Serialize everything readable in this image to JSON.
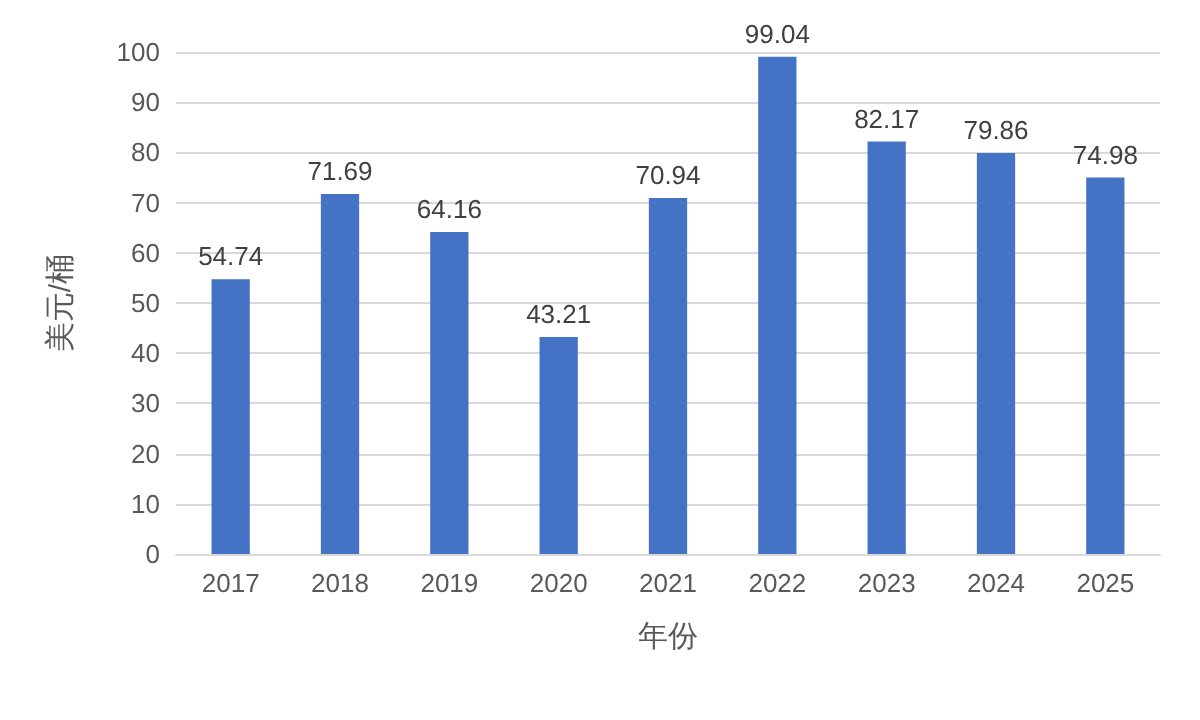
{
  "chart_data": {
    "type": "bar",
    "xlabel": "年份",
    "ylabel": "美元/桶",
    "categories": [
      "2017",
      "2018",
      "2019",
      "2020",
      "2021",
      "2022",
      "2023",
      "2024",
      "2025"
    ],
    "values": [
      54.74,
      71.69,
      64.16,
      43.21,
      70.94,
      99.04,
      82.17,
      79.86,
      74.98
    ],
    "color": "#4472c4",
    "ylim": [
      0,
      100
    ],
    "yticks": [
      0,
      10,
      20,
      30,
      40,
      50,
      60,
      70,
      80,
      90,
      100
    ],
    "grid": "y",
    "data_labels": true
  }
}
